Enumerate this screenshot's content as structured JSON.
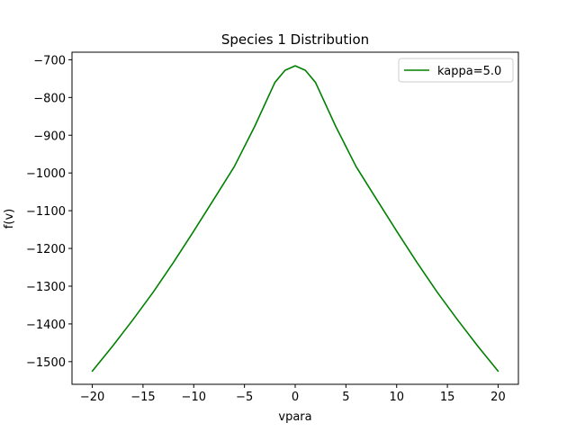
{
  "chart_data": {
    "type": "line",
    "title": "Species 1 Distribution",
    "xlabel": "vpara",
    "ylabel": "f(v)",
    "xlim": [
      -22,
      22
    ],
    "ylim": [
      -1560,
      -680
    ],
    "xticks": [
      -20,
      -15,
      -10,
      -5,
      0,
      5,
      10,
      15,
      20
    ],
    "xtick_labels": [
      "−20",
      "−15",
      "−10",
      "−5",
      "0",
      "5",
      "10",
      "15",
      "20"
    ],
    "yticks": [
      -700,
      -800,
      -900,
      -1000,
      -1100,
      -1200,
      -1300,
      -1400,
      -1500
    ],
    "ytick_labels": [
      "−700",
      "−800",
      "−900",
      "−1000",
      "−1100",
      "−1200",
      "−1300",
      "−1400",
      "−1500"
    ],
    "grid": false,
    "legend_position": "top-right",
    "series": [
      {
        "name": "kappa=5.0",
        "color": "#008000",
        "x": [
          -20,
          -18,
          -16,
          -14,
          -12,
          -10,
          -8,
          -6,
          -4,
          -2,
          -1,
          0,
          1,
          2,
          4,
          6,
          8,
          10,
          12,
          14,
          16,
          18,
          20
        ],
        "y": [
          -1525,
          -1459,
          -1389,
          -1316,
          -1237,
          -1154,
          -1069,
          -983,
          -877,
          -760,
          -728,
          -716,
          -728,
          -760,
          -877,
          -983,
          -1069,
          -1154,
          -1237,
          -1316,
          -1389,
          -1459,
          -1525
        ]
      }
    ]
  }
}
